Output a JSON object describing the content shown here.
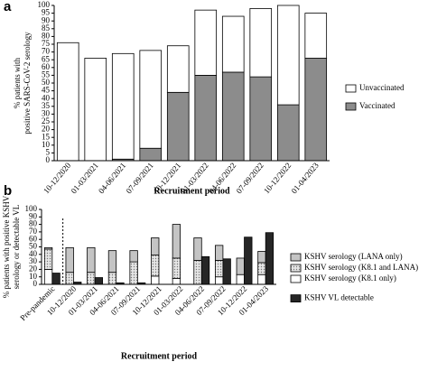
{
  "chart_data": [
    {
      "type": "bar",
      "stacked": true,
      "panel_label": "a",
      "ylabel": [
        "% patients with",
        "positive SARS-CoV-2 serology"
      ],
      "xlabel": "Recruitment period",
      "categories": [
        "10-12/2020",
        "01-03/2021",
        "04-06/2021",
        "07-09/2021",
        "10-12/2021",
        "01-03/2022",
        "04-06/2022",
        "07-09/2022",
        "10-12/2022",
        "01-04/2023"
      ],
      "series": [
        {
          "name": "Vaccinated",
          "color": "#8c8c8c",
          "group": 0,
          "values": [
            0,
            0,
            1,
            8,
            44,
            55,
            57,
            54,
            36,
            66
          ]
        },
        {
          "name": "Unvaccinated",
          "color": "#ffffff",
          "group": 0,
          "values": [
            76,
            66,
            68,
            63,
            30,
            42,
            36,
            44,
            64,
            29
          ]
        }
      ],
      "ylim": [
        0,
        100
      ],
      "yticks": [
        0,
        5,
        10,
        15,
        20,
        25,
        30,
        35,
        40,
        45,
        50,
        55,
        60,
        65,
        70,
        75,
        80,
        85,
        90,
        95,
        100
      ]
    },
    {
      "type": "bar",
      "stacked": true,
      "panel_label": "b",
      "ylabel": [
        "% patients with positive KSHV",
        "serology or detectable VL"
      ],
      "xlabel": "Recruitment period",
      "categories": [
        "Pre-pandemic",
        "10-12/2020",
        "01-03/2021",
        "04-06/2021",
        "07-09/2021",
        "10-12/2021",
        "01-03/2022",
        "04-06/2022",
        "07-09/2022",
        "10-12/2022",
        "01-04/2023"
      ],
      "series": [
        {
          "name": "KSHV serology (K8.1 only)",
          "color": "#ffffff",
          "group": 0,
          "values": [
            20,
            0,
            0,
            0,
            0,
            11,
            8,
            0,
            10,
            13,
            13
          ]
        },
        {
          "name": "KSHV serology (K8.1 and LANA)",
          "color": "#d0d0d0",
          "hatch": true,
          "group": 0,
          "values": [
            27,
            16,
            16,
            16,
            30,
            28,
            27,
            32,
            22,
            0,
            16
          ]
        },
        {
          "name": "KSHV serology (LANA only)",
          "color": "#c4c4c4",
          "group": 0,
          "values": [
            2,
            33,
            33,
            29,
            15,
            23,
            45,
            30,
            20,
            22,
            15
          ]
        },
        {
          "name": "KSHV VL detectable",
          "color": "#262626",
          "group": 1,
          "values": [
            15,
            3,
            9,
            2,
            2,
            0,
            0,
            37,
            34,
            63,
            69
          ]
        }
      ],
      "ylim": [
        0,
        100
      ],
      "yticks": [
        0,
        10,
        20,
        30,
        40,
        50,
        60,
        70,
        80,
        90,
        100
      ]
    }
  ]
}
